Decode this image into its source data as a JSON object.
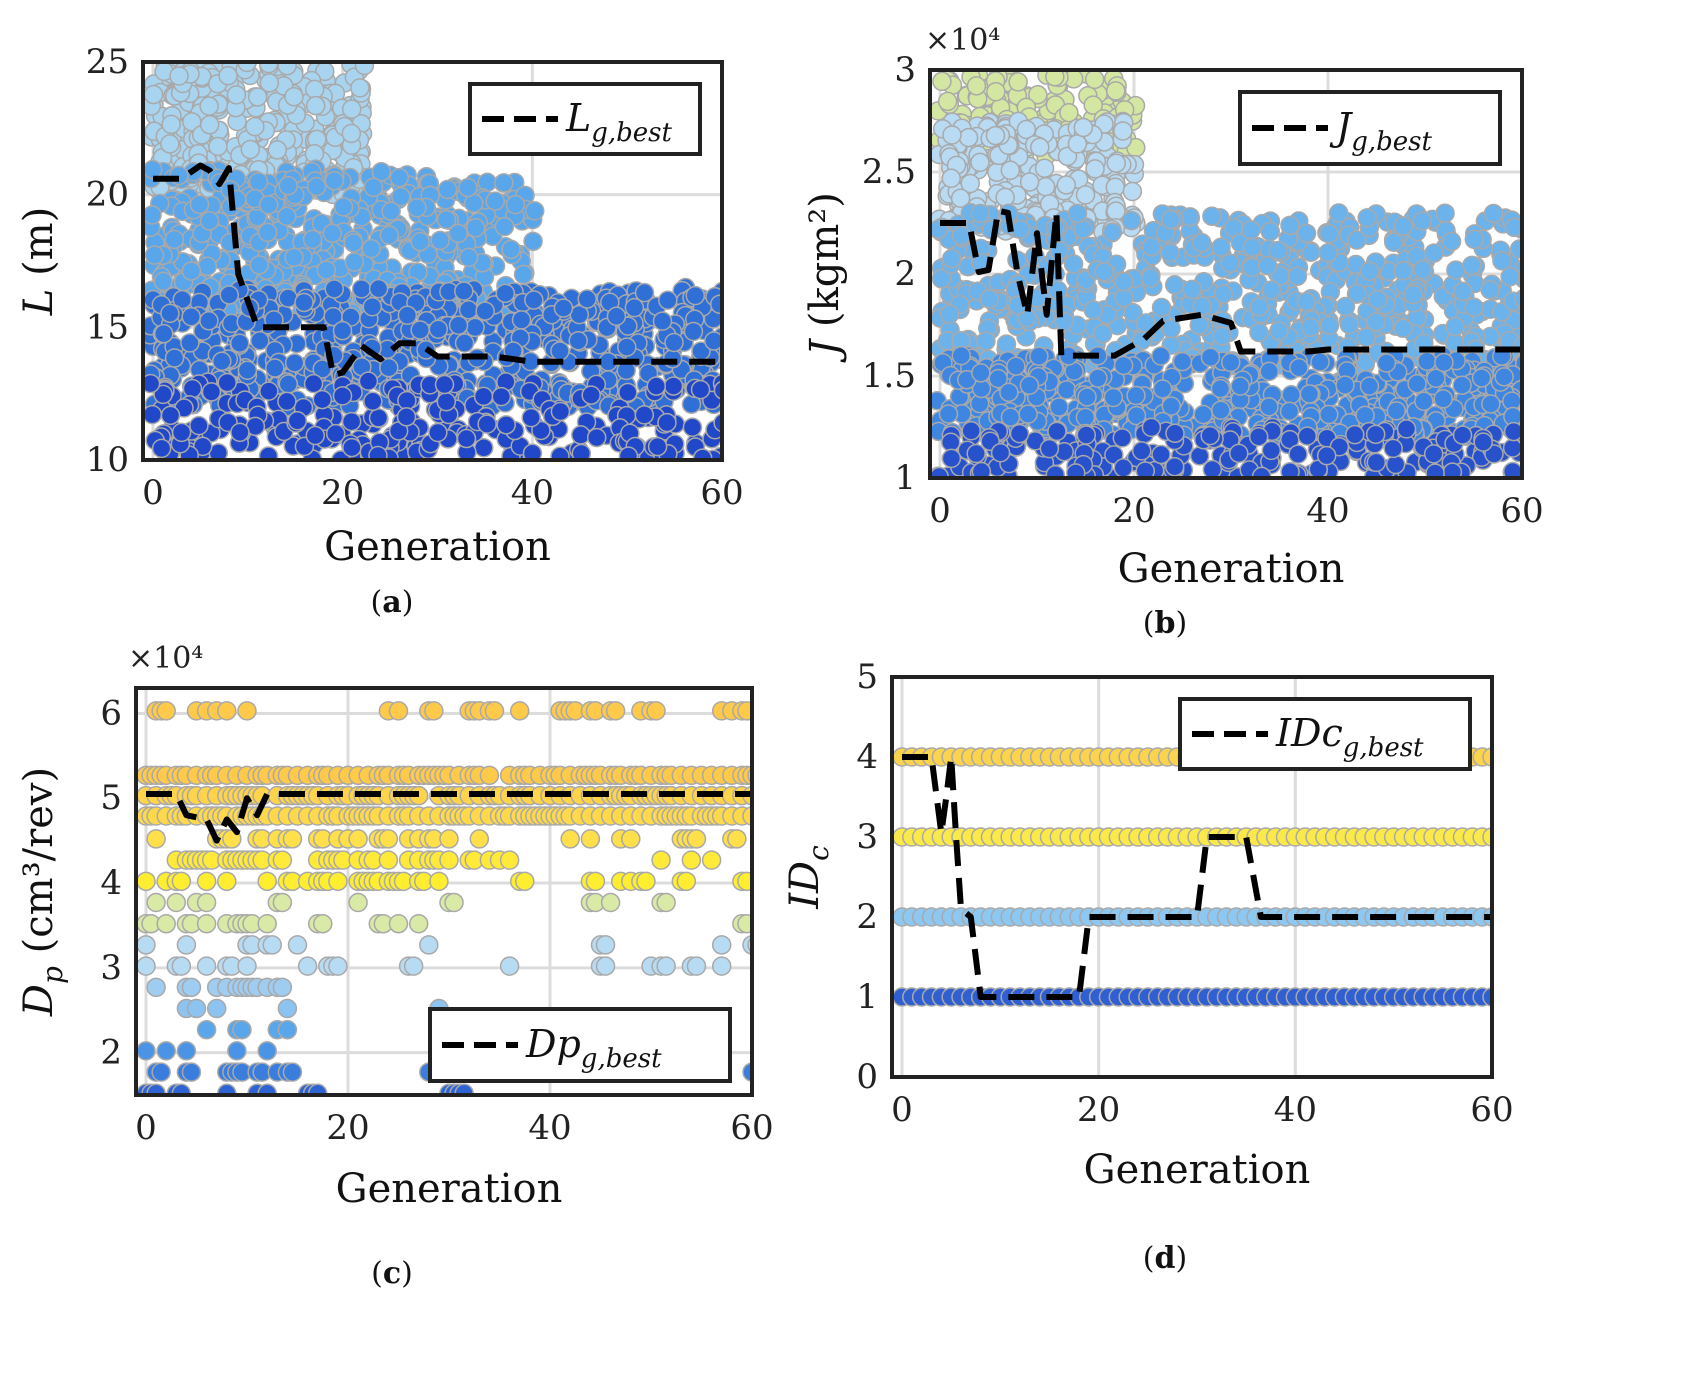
{
  "chart_data": [
    {
      "id": "a",
      "type": "scatter",
      "caption": "(a)",
      "xlabel": "Generation",
      "ylabel_symbol": "L",
      "ylabel_unit": "(m)",
      "xlim": [
        0,
        60
      ],
      "ylim": [
        10,
        25
      ],
      "xticks": [
        "0",
        "20",
        "40",
        "60"
      ],
      "yticks": [
        "10",
        "15",
        "20",
        "25"
      ],
      "grid": true,
      "legend": {
        "base": "L",
        "sub": "g,best",
        "position": "top-right"
      },
      "best_series": [
        [
          0,
          20.6
        ],
        [
          3,
          20.6
        ],
        [
          5,
          21.1
        ],
        [
          6,
          20.9
        ],
        [
          7,
          20.4
        ],
        [
          8,
          21.0
        ],
        [
          9,
          17.0
        ],
        [
          11,
          15.0
        ],
        [
          18,
          15.0
        ],
        [
          19,
          13.2
        ],
        [
          20,
          13.3
        ],
        [
          22,
          14.3
        ],
        [
          24,
          13.8
        ],
        [
          26,
          14.4
        ],
        [
          28,
          14.4
        ],
        [
          30,
          13.9
        ],
        [
          36,
          13.9
        ],
        [
          40,
          13.7
        ],
        [
          60,
          13.7
        ]
      ],
      "scatter_bands": [
        {
          "x": [
            0,
            22
          ],
          "y": [
            20,
            25
          ],
          "n": 380,
          "color": "#a9d4f0"
        },
        {
          "x": [
            0,
            40
          ],
          "y": [
            15.5,
            21
          ],
          "n": 520,
          "color": "#5aa6ea"
        },
        {
          "x": [
            0,
            60
          ],
          "y": [
            12,
            16.5
          ],
          "n": 650,
          "color": "#2f6fd6"
        },
        {
          "x": [
            0,
            60
          ],
          "y": [
            10,
            13
          ],
          "n": 260,
          "color": "#2048c8"
        }
      ],
      "colors": {
        "best_line": "#000000"
      }
    },
    {
      "id": "b",
      "type": "scatter",
      "caption": "(b)",
      "xlabel": "Generation",
      "ylabel_symbol": "J",
      "ylabel_unit": "(kgm²)",
      "multiplier": "×10⁴",
      "xlim": [
        0,
        60
      ],
      "ylim": [
        1,
        3
      ],
      "xticks": [
        "0",
        "20",
        "40",
        "60"
      ],
      "yticks": [
        "1",
        "1.5",
        "2",
        "2.5",
        "3"
      ],
      "grid": true,
      "legend": {
        "base": "J",
        "sub": "g,best",
        "position": "top-right"
      },
      "best_series": [
        [
          0,
          2.25
        ],
        [
          3,
          2.25
        ],
        [
          4,
          2.01
        ],
        [
          5,
          2.02
        ],
        [
          6,
          2.31
        ],
        [
          7,
          2.3
        ],
        [
          8,
          2.0
        ],
        [
          9,
          1.8
        ],
        [
          10,
          2.2
        ],
        [
          11,
          1.8
        ],
        [
          12,
          2.3
        ],
        [
          12.5,
          1.6
        ],
        [
          18,
          1.6
        ],
        [
          21,
          1.68
        ],
        [
          23,
          1.77
        ],
        [
          27,
          1.8
        ],
        [
          30,
          1.76
        ],
        [
          31,
          1.62
        ],
        [
          38,
          1.62
        ],
        [
          40,
          1.63
        ],
        [
          60,
          1.63
        ]
      ],
      "scatter_bands": [
        {
          "x": [
            0,
            20
          ],
          "y": [
            2.55,
            3.0
          ],
          "n": 170,
          "color": "#d3e7a2"
        },
        {
          "x": [
            0,
            20
          ],
          "y": [
            2.2,
            2.75
          ],
          "n": 260,
          "color": "#b8daf3"
        },
        {
          "x": [
            0,
            60
          ],
          "y": [
            1.55,
            2.3
          ],
          "n": 650,
          "color": "#6cb3ec"
        },
        {
          "x": [
            0,
            60
          ],
          "y": [
            1.2,
            1.6
          ],
          "n": 560,
          "color": "#3f86e0"
        },
        {
          "x": [
            0,
            60
          ],
          "y": [
            1.0,
            1.25
          ],
          "n": 220,
          "color": "#2752cc"
        }
      ],
      "colors": {
        "best_line": "#000000"
      }
    },
    {
      "id": "c",
      "type": "scatter",
      "caption": "(c)",
      "xlabel": "Generation",
      "ylabel_symbol": "D",
      "ylabel_sub": "p",
      "ylabel_unit": "(cm³/rev)",
      "multiplier": "×10⁴",
      "xlim": [
        0,
        60
      ],
      "ylim": [
        1.5,
        6.3
      ],
      "xticks": [
        "0",
        "20",
        "40",
        "60"
      ],
      "yticks": [
        "2",
        "3",
        "4",
        "5",
        "6"
      ],
      "grid": true,
      "legend": {
        "base": "Dp",
        "sub": "g,best",
        "position": "bottom-right"
      },
      "best_series": [
        [
          0,
          5.05
        ],
        [
          3,
          5.05
        ],
        [
          4,
          4.8
        ],
        [
          6,
          4.75
        ],
        [
          7,
          4.5
        ],
        [
          8,
          4.75
        ],
        [
          9,
          4.6
        ],
        [
          10,
          5.0
        ],
        [
          11,
          4.8
        ],
        [
          12,
          5.05
        ],
        [
          60,
          5.05
        ]
      ],
      "levels": [
        {
          "y": 6.03,
          "color": "#ffc94a"
        },
        {
          "y": 5.27,
          "color": "#ffc94a"
        },
        {
          "y": 5.03,
          "color": "#ffd34a"
        },
        {
          "y": 4.79,
          "color": "#ffd94a"
        },
        {
          "y": 4.52,
          "color": "#ffe04a"
        },
        {
          "y": 4.27,
          "color": "#ffea3a"
        },
        {
          "y": 4.02,
          "color": "#ffee30"
        },
        {
          "y": 3.77,
          "color": "#d9e9a6"
        },
        {
          "y": 3.52,
          "color": "#d9e9a6"
        },
        {
          "y": 3.27,
          "color": "#b8dbf4"
        },
        {
          "y": 3.02,
          "color": "#b8dbf4"
        },
        {
          "y": 2.77,
          "color": "#9fcdf2"
        },
        {
          "y": 2.52,
          "color": "#8cc3f0"
        },
        {
          "y": 2.27,
          "color": "#5aa6ea"
        },
        {
          "y": 2.02,
          "color": "#4b93e4"
        },
        {
          "y": 1.77,
          "color": "#3a7ddc"
        },
        {
          "y": 1.52,
          "color": "#2d63d2"
        }
      ],
      "colors": {
        "best_line": "#000000"
      }
    },
    {
      "id": "d",
      "type": "scatter",
      "caption": "(d)",
      "xlabel": "Generation",
      "ylabel_symbol": "ID",
      "ylabel_sub": "c",
      "xlim": [
        0,
        60
      ],
      "ylim": [
        0,
        5
      ],
      "xticks": [
        "0",
        "20",
        "40",
        "60"
      ],
      "yticks": [
        "0",
        "1",
        "2",
        "3",
        "4",
        "5"
      ],
      "grid": true,
      "legend": {
        "base": "IDc",
        "sub": "g,best",
        "position": "top-right"
      },
      "best_series": [
        [
          0,
          4
        ],
        [
          3,
          4
        ],
        [
          4,
          3.05
        ],
        [
          4.5,
          3.5
        ],
        [
          5,
          4.0
        ],
        [
          5.5,
          3.0
        ],
        [
          6,
          2.1
        ],
        [
          7,
          2.0
        ],
        [
          8,
          1.0
        ],
        [
          18,
          1.0
        ],
        [
          19,
          2.0
        ],
        [
          30,
          2.0
        ],
        [
          31,
          3.0
        ],
        [
          35,
          3.0
        ],
        [
          36.5,
          2.0
        ],
        [
          60,
          2.0
        ]
      ],
      "levels": [
        {
          "y": 4,
          "color": "#fcd34d"
        },
        {
          "y": 3,
          "color": "#fbe94a"
        },
        {
          "y": 2,
          "color": "#8cc8f2"
        },
        {
          "y": 1,
          "color": "#2f5fd0"
        }
      ],
      "colors": {
        "best_line": "#000000"
      }
    }
  ]
}
